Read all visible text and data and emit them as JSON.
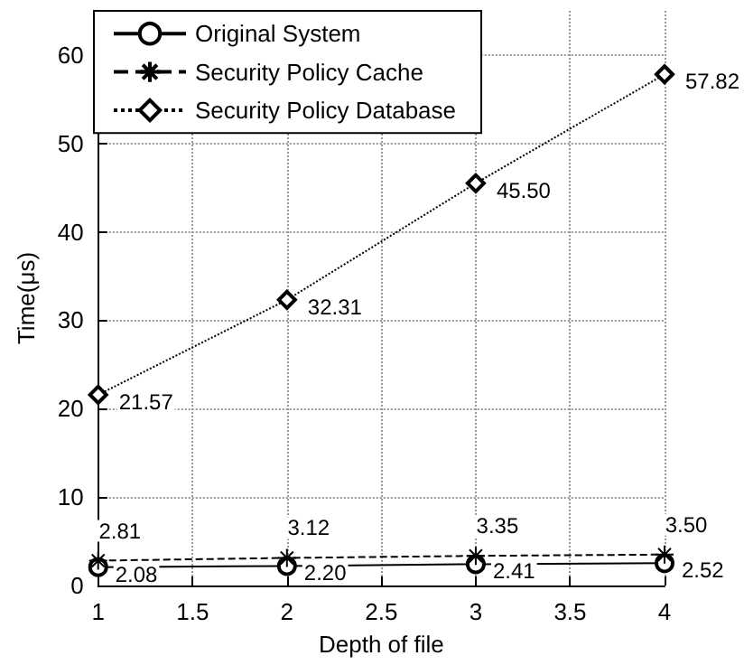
{
  "chart_data": {
    "type": "line",
    "xlabel": "Depth of file",
    "ylabel": "Time(μs)",
    "x": [
      1,
      2,
      3,
      4
    ],
    "series": [
      {
        "name": "Original System",
        "color": "#000000",
        "marker": "circle",
        "line_style": "solid",
        "values": [
          2.08,
          2.2,
          2.41,
          2.52
        ],
        "value_labels": [
          "2.08",
          "2.20",
          "2.41",
          "2.52"
        ]
      },
      {
        "name": "Security Policy Cache",
        "color": "#000000",
        "marker": "cross",
        "line_style": "dashed",
        "values": [
          2.81,
          3.12,
          3.35,
          3.5
        ],
        "value_labels": [
          "2.81",
          "3.12",
          "3.35",
          "3.50"
        ]
      },
      {
        "name": "Security Policy Database",
        "color": "#000000",
        "marker": "diamond",
        "line_style": "dotted",
        "values": [
          21.57,
          32.31,
          45.5,
          57.82
        ],
        "value_labels": [
          "21.57",
          "32.31",
          "45.50",
          "57.82"
        ]
      }
    ],
    "xlim": [
      1,
      4
    ],
    "xticks": [
      1,
      1.5,
      2,
      2.5,
      3,
      3.5,
      4
    ],
    "ylim": [
      0,
      65
    ],
    "yticks": [
      0,
      10,
      20,
      30,
      40,
      50,
      60
    ],
    "grid": true,
    "legend": "top left"
  }
}
